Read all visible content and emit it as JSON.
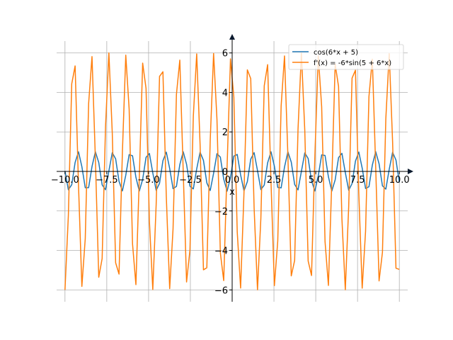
{
  "chart_data": {
    "type": "line",
    "title": "",
    "xlabel": "x",
    "ylabel": "",
    "xlim": [
      -10.5,
      10.5
    ],
    "ylim": [
      -6.6,
      6.6
    ],
    "x_ticks": [
      -10.0,
      -7.5,
      -5.0,
      -2.5,
      0.0,
      2.5,
      5.0,
      7.5,
      10.0
    ],
    "x_tick_labels": [
      "−10.0",
      "−7.5",
      "−5.0",
      "−2.5",
      "0.0",
      "2.5",
      "5.0",
      "7.5",
      "10.0"
    ],
    "y_ticks": [
      -6,
      -4,
      -2,
      0,
      2,
      4,
      6
    ],
    "y_tick_labels": [
      "−6",
      "−4",
      "−2",
      "0",
      "2",
      "4",
      "6"
    ],
    "grid": true,
    "legend_position": "top-right",
    "sampling": {
      "x_start": -10.0,
      "x_end": 10.0,
      "points": 100
    },
    "series": [
      {
        "name": "cos(6*x + 5)",
        "color": "#1f77b4"
      },
      {
        "name": "f'(x) = -6*sin(5 + 6*x)",
        "color": "#ff7f0e"
      }
    ]
  }
}
